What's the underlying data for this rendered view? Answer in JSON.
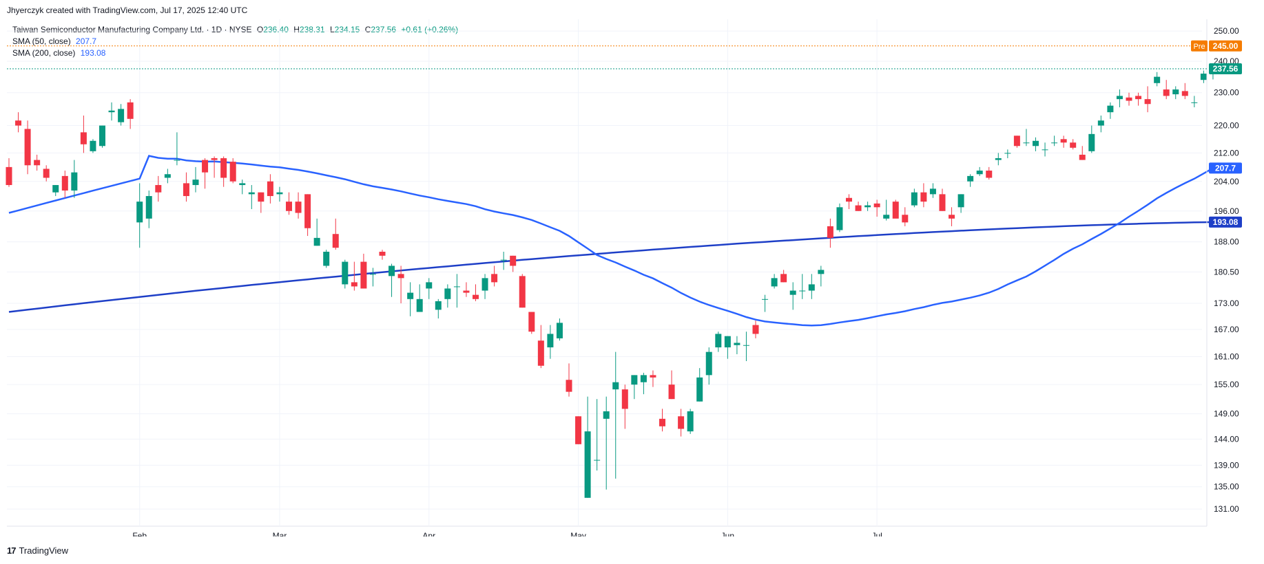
{
  "header": {
    "attribution": "Jhyerczyk created with TradingView.com, Jul 17, 2025 12:40 UTC"
  },
  "legend": {
    "symbol": "Taiwan Semiconductor Manufacturing Company Ltd. · 1D · NYSE",
    "o_label": "O",
    "o_value": "236.40",
    "h_label": "H",
    "h_value": "238.31",
    "l_label": "L",
    "l_value": "234.15",
    "c_label": "C",
    "c_value": "237.56",
    "change": "+0.61 (+0.26%)",
    "sma50_label": "SMA (50, close)",
    "sma50_value": "207.7",
    "sma200_label": "SMA (200, close)",
    "sma200_value": "193.08"
  },
  "footer": {
    "brand": "TradingView",
    "logo": "17"
  },
  "colors": {
    "up": "#089981",
    "down": "#f23645",
    "sma50": "#2962ff",
    "sma200": "#1e3fc7",
    "pre": "#f57c00",
    "grid": "#f0f3fa"
  },
  "chart_data": {
    "type": "candlestick",
    "title": "Taiwan Semiconductor Manufacturing Company Ltd. · 1D · NYSE",
    "ylim": [
      128,
      254
    ],
    "y_scale": "log",
    "y_ticks": [
      "250.00",
      "240.00",
      "230.00",
      "220.00",
      "212.00",
      "204.00",
      "196.00",
      "188.00",
      "180.50",
      "173.00",
      "167.00",
      "161.00",
      "155.00",
      "149.00",
      "144.00",
      "139.00",
      "135.00",
      "131.00"
    ],
    "x_ticks": [
      {
        "label": "Feb",
        "index": 14
      },
      {
        "label": "Mar",
        "index": 29
      },
      {
        "label": "Apr",
        "index": 45
      },
      {
        "label": "May",
        "index": 61
      },
      {
        "label": "Jun",
        "index": 77
      },
      {
        "label": "Jul",
        "index": 93
      }
    ],
    "price_tags": [
      {
        "name": "Pre",
        "value": "245.00"
      },
      {
        "name": "Last",
        "value": "237.56"
      },
      {
        "name": "SMA (50, close)",
        "value": "207.7"
      },
      {
        "name": "SMA (200, close)",
        "value": "193.08"
      }
    ],
    "candles": [
      [
        208,
        210.5,
        202.5,
        203
      ],
      [
        221.5,
        224,
        218,
        220
      ],
      [
        219,
        221.5,
        206,
        208.5
      ],
      [
        210,
        211.5,
        207,
        208.5
      ],
      [
        207.5,
        208.5,
        204,
        205
      ],
      [
        201,
        203,
        200,
        203
      ],
      [
        205.5,
        207,
        199.5,
        201.5
      ],
      [
        201.5,
        210,
        199.5,
        206.5
      ],
      [
        218,
        223,
        212,
        214.5
      ],
      [
        212.5,
        216,
        212,
        215.5
      ],
      [
        214,
        220,
        213.5,
        220
      ],
      [
        224,
        227,
        221.5,
        224.5
      ],
      [
        221,
        226.5,
        220,
        225
      ],
      [
        227,
        228,
        219,
        222
      ],
      [
        193,
        203.5,
        186.5,
        198.5
      ],
      [
        194,
        201.5,
        191.5,
        200
      ],
      [
        203,
        205.5,
        198.5,
        201
      ],
      [
        205,
        207.5,
        203.5,
        206
      ],
      [
        210,
        218,
        208.5,
        210
      ],
      [
        203.5,
        206.5,
        198.5,
        200
      ],
      [
        203,
        208,
        201,
        204.5
      ],
      [
        210,
        210.5,
        202,
        206.5
      ],
      [
        210.5,
        211,
        205,
        210
      ],
      [
        210.5,
        211,
        202.5,
        205
      ],
      [
        209.5,
        210.5,
        203.5,
        204
      ],
      [
        203,
        204.5,
        200.5,
        203.5
      ],
      [
        200.5,
        203,
        196.5,
        201
      ],
      [
        201,
        201,
        195.5,
        198.5
      ],
      [
        204,
        206,
        198,
        200
      ],
      [
        200.5,
        202.5,
        198.5,
        201
      ],
      [
        198.5,
        201,
        195,
        196
      ],
      [
        198.5,
        201,
        194,
        195.5
      ],
      [
        200.5,
        200.5,
        189.5,
        191.5
      ],
      [
        187,
        194,
        187,
        189
      ],
      [
        182,
        186,
        181.5,
        185.5
      ],
      [
        190,
        194,
        186,
        186.5
      ],
      [
        177.5,
        183.5,
        176.5,
        183
      ],
      [
        178,
        183,
        176,
        177
      ],
      [
        183,
        185,
        176.5,
        176.5
      ],
      [
        180,
        181.5,
        177,
        180
      ],
      [
        185.5,
        186,
        183.5,
        184.5
      ],
      [
        179.5,
        182.5,
        174.5,
        182
      ],
      [
        180,
        182,
        173,
        179
      ],
      [
        174,
        178,
        170,
        175.5
      ],
      [
        171,
        177.5,
        171,
        174
      ],
      [
        176.5,
        179,
        174,
        178
      ],
      [
        171.5,
        174,
        169.5,
        173.5
      ],
      [
        174,
        177.5,
        172,
        176.5
      ],
      [
        177,
        180,
        172,
        177
      ],
      [
        176,
        178,
        174.5,
        175.5
      ],
      [
        175,
        177.5,
        173.5,
        174
      ],
      [
        176,
        180,
        174,
        179
      ],
      [
        180,
        182,
        177,
        178
      ],
      [
        183.5,
        185.5,
        181,
        183.5
      ],
      [
        184.5,
        184.5,
        180.5,
        182
      ],
      [
        179.5,
        180,
        172,
        172
      ],
      [
        171,
        171,
        166,
        166.5
      ],
      [
        164.5,
        168,
        158.5,
        159
      ],
      [
        163,
        168,
        160.5,
        166
      ],
      [
        165,
        169.5,
        164.5,
        168.5
      ],
      [
        156,
        159.5,
        152.5,
        153.5
      ],
      [
        148.5,
        148.5,
        143,
        143
      ],
      [
        133,
        152.5,
        133,
        145.5
      ],
      [
        140,
        152,
        138,
        140
      ],
      [
        148,
        152.5,
        134.5,
        149.5
      ],
      [
        154,
        162,
        136.5,
        155.5
      ],
      [
        154,
        155,
        146,
        150
      ],
      [
        155,
        157,
        152,
        157
      ],
      [
        155.5,
        157.5,
        153,
        157
      ],
      [
        157,
        158,
        154.5,
        156.5
      ],
      [
        148,
        150,
        145.5,
        146.5
      ],
      [
        155,
        158,
        152,
        152
      ],
      [
        148.5,
        150,
        144.5,
        146
      ],
      [
        145.5,
        150,
        145,
        149.5
      ],
      [
        151.5,
        158.5,
        151.5,
        156.5
      ],
      [
        157,
        163,
        155,
        162
      ],
      [
        163,
        166.5,
        162,
        166
      ],
      [
        163,
        165.5,
        160.5,
        165.5
      ],
      [
        163.5,
        165.5,
        161.5,
        164
      ],
      [
        163.5,
        166.5,
        160,
        163.5
      ],
      [
        168,
        169,
        165,
        166
      ],
      [
        174,
        175,
        171,
        174
      ],
      [
        177,
        180,
        176.5,
        179
      ],
      [
        180,
        181,
        178,
        178
      ],
      [
        175,
        178,
        171.5,
        176
      ],
      [
        176,
        180,
        174,
        176
      ],
      [
        176,
        180,
        174,
        177.5
      ],
      [
        180,
        182,
        177,
        181
      ]
    ],
    "candles_may_jul": [
      [
        192,
        194,
        186.5,
        189
      ],
      [
        191,
        198,
        190.5,
        197
      ],
      [
        199.5,
        200.5,
        196.5,
        198.5
      ],
      [
        197.5,
        198.5,
        196,
        196
      ],
      [
        197,
        198.5,
        196,
        197.5
      ],
      [
        198,
        199,
        194.5,
        197
      ],
      [
        194,
        199,
        193.5,
        195
      ],
      [
        198.5,
        199,
        194.5,
        194
      ],
      [
        195,
        197,
        192,
        193
      ],
      [
        197.5,
        202,
        197,
        201
      ],
      [
        201,
        203.5,
        197,
        198.5
      ],
      [
        200.5,
        203.5,
        199.5,
        202
      ],
      [
        200.5,
        202,
        196,
        196
      ],
      [
        195,
        197,
        192,
        194
      ],
      [
        197,
        200.5,
        195.5,
        200.5
      ],
      [
        204,
        206,
        202.5,
        205.5
      ],
      [
        206,
        208,
        205.5,
        207
      ],
      [
        207,
        208,
        204.5,
        205
      ],
      [
        210,
        212,
        208.5,
        210.5
      ],
      [
        212,
        213,
        210.5,
        212
      ],
      [
        217,
        217,
        213.5,
        214
      ],
      [
        215,
        219,
        214,
        215
      ],
      [
        214,
        216.5,
        212.5,
        215.5
      ],
      [
        213,
        215,
        211,
        213
      ],
      [
        215,
        217,
        214,
        215
      ],
      [
        216,
        217,
        213.5,
        215
      ],
      [
        215,
        216,
        213,
        213.5
      ],
      [
        211.5,
        214,
        210,
        210
      ],
      [
        212.5,
        220,
        212,
        217.5
      ],
      [
        220,
        223,
        218,
        221.5
      ],
      [
        224,
        227,
        222,
        226
      ],
      [
        228,
        231,
        225.5,
        229
      ],
      [
        228.5,
        230,
        226,
        227.5
      ],
      [
        229,
        230,
        226,
        228
      ],
      [
        228,
        232,
        224,
        226.5
      ],
      [
        233,
        236.5,
        232,
        235
      ],
      [
        231,
        234,
        228,
        229
      ],
      [
        229.5,
        232,
        228,
        231
      ],
      [
        230.5,
        233,
        228,
        229
      ],
      [
        227,
        229,
        225.5,
        227
      ],
      [
        234,
        237,
        233,
        236
      ],
      [
        236.4,
        238.31,
        234.15,
        237.56
      ]
    ],
    "series": [
      {
        "name": "SMA (50, close)",
        "last": 207.7
      },
      {
        "name": "SMA (200, close)",
        "last": 193.08
      }
    ]
  }
}
